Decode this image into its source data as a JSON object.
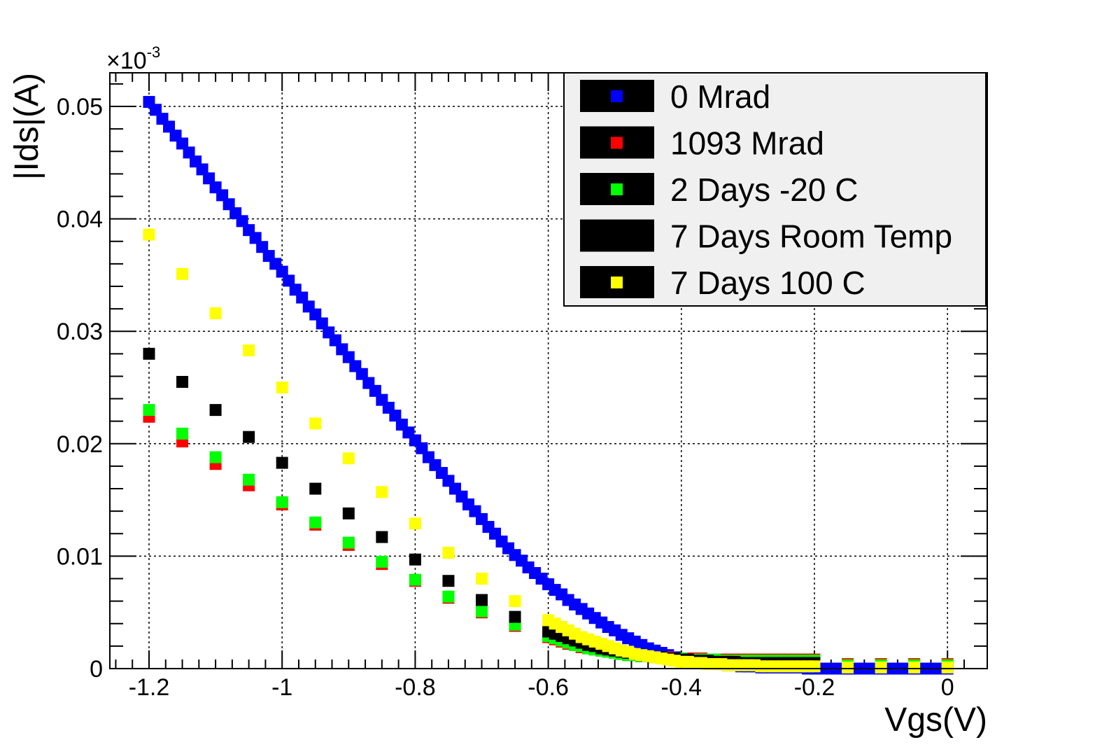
{
  "chart_data": {
    "type": "scatter",
    "title": "",
    "xlabel": "Vgs(V)",
    "ylabel": "|Ids|(A)",
    "y_multiplier_label": "×10",
    "y_multiplier_exponent": "-3",
    "xlim": [
      -1.25,
      0.03
    ],
    "ylim": [
      0,
      0.053
    ],
    "x_ticks": [
      -1.2,
      -1.0,
      -0.8,
      -0.6,
      -0.4,
      -0.2,
      0
    ],
    "x_tick_labels": [
      "-1.2",
      "-1",
      "-0.8",
      "-0.6",
      "-0.4",
      "-0.2",
      "0"
    ],
    "y_ticks": [
      0,
      0.01,
      0.02,
      0.03,
      0.04,
      0.05
    ],
    "y_tick_labels": [
      "0",
      "0.01",
      "0.02",
      "0.03",
      "0.04",
      "0.05"
    ],
    "grid": true,
    "legend_position": "top-right",
    "series": [
      {
        "name": "0 Mrad",
        "color": "#0000ff",
        "x": [
          -1.2,
          -1.19,
          -1.18,
          -1.17,
          -1.16,
          -1.15,
          -1.14,
          -1.13,
          -1.12,
          -1.11,
          -1.1,
          -1.09,
          -1.08,
          -1.07,
          -1.06,
          -1.05,
          -1.04,
          -1.03,
          -1.02,
          -1.01,
          -1.0,
          -0.99,
          -0.98,
          -0.97,
          -0.96,
          -0.95,
          -0.94,
          -0.93,
          -0.92,
          -0.91,
          -0.9,
          -0.89,
          -0.88,
          -0.87,
          -0.86,
          -0.85,
          -0.84,
          -0.83,
          -0.82,
          -0.81,
          -0.8,
          -0.79,
          -0.78,
          -0.77,
          -0.76,
          -0.75,
          -0.74,
          -0.73,
          -0.72,
          -0.71,
          -0.7,
          -0.69,
          -0.68,
          -0.67,
          -0.66,
          -0.65,
          -0.64,
          -0.63,
          -0.62,
          -0.61,
          -0.6,
          -0.59,
          -0.58,
          -0.57,
          -0.56,
          -0.55,
          -0.54,
          -0.53,
          -0.52,
          -0.51,
          -0.5,
          -0.49,
          -0.48,
          -0.47,
          -0.46,
          -0.45,
          -0.44,
          -0.43,
          -0.42,
          -0.41,
          -0.4,
          -0.39,
          -0.38,
          -0.37,
          -0.36,
          -0.35,
          -0.34,
          -0.33,
          -0.32,
          -0.31,
          -0.3,
          -0.29,
          -0.28,
          -0.27,
          -0.26,
          -0.25,
          -0.24,
          -0.23,
          -0.22,
          -0.21,
          -0.2,
          -0.19,
          -0.18,
          -0.17,
          -0.16,
          -0.15,
          -0.14,
          -0.13,
          -0.12,
          -0.11,
          -0.1,
          -0.09,
          -0.08,
          -0.07,
          -0.06,
          -0.05,
          -0.04,
          -0.03,
          -0.02,
          -0.01,
          0.0
        ],
        "y": [
          0.0504,
          0.0497,
          0.0489,
          0.0482,
          0.0474,
          0.0467,
          0.0459,
          0.0451,
          0.0444,
          0.0436,
          0.0428,
          0.0421,
          0.0413,
          0.0405,
          0.0398,
          0.039,
          0.0383,
          0.0375,
          0.0367,
          0.036,
          0.0353,
          0.0345,
          0.0337,
          0.033,
          0.0322,
          0.0315,
          0.0307,
          0.0299,
          0.0292,
          0.0284,
          0.0277,
          0.0269,
          0.0262,
          0.0254,
          0.0247,
          0.0239,
          0.0232,
          0.0225,
          0.0217,
          0.021,
          0.0203,
          0.0196,
          0.0188,
          0.0181,
          0.0174,
          0.0167,
          0.016,
          0.0153,
          0.0146,
          0.014,
          0.0133,
          0.0126,
          0.012,
          0.0113,
          0.0107,
          0.0101,
          0.0096,
          0.009,
          0.0085,
          0.008,
          0.0075,
          0.007,
          0.0066,
          0.0061,
          0.0057,
          0.0053,
          0.0049,
          0.0045,
          0.0041,
          0.0037,
          0.0034,
          0.003,
          0.0027,
          0.0024,
          0.0021,
          0.0018,
          0.0016,
          0.0014,
          0.0012,
          0.001,
          0.0009,
          0.0008,
          0.0007,
          0.0006,
          0.0005,
          0.0004,
          0.0004,
          0.0003,
          0.0003,
          0.0002,
          0.0002,
          0.0002,
          0.0001,
          0.0001,
          0.0001,
          0.0001,
          0.0001,
          0.0001,
          0.0001,
          0.0,
          0.0,
          0.0,
          0.0,
          0.0,
          0.0,
          0.0,
          0.0,
          0.0,
          0.0,
          0.0,
          0.0,
          0.0,
          0.0,
          0.0,
          0.0,
          0.0,
          0.0,
          0.0,
          0.0,
          0.0,
          0.0
        ]
      },
      {
        "name": "1093 Mrad",
        "color": "#ff0000",
        "x": [
          -1.2,
          -1.15,
          -1.1,
          -1.05,
          -1.0,
          -0.95,
          -0.9,
          -0.85,
          -0.8,
          -0.75,
          -0.7,
          -0.65,
          -0.6,
          -0.59,
          -0.58,
          -0.57,
          -0.56,
          -0.55,
          -0.54,
          -0.53,
          -0.52,
          -0.51,
          -0.5,
          -0.49,
          -0.48,
          -0.47,
          -0.46,
          -0.45,
          -0.44,
          -0.43,
          -0.42,
          -0.41,
          -0.4,
          -0.39,
          -0.38,
          -0.37,
          -0.36,
          -0.35,
          -0.34,
          -0.33,
          -0.32,
          -0.31,
          -0.3,
          -0.29,
          -0.28,
          -0.27,
          -0.26,
          -0.25,
          -0.24,
          -0.23,
          -0.22,
          -0.21,
          -0.2,
          -0.15,
          -0.1,
          -0.05,
          0.0
        ],
        "y": [
          0.0224,
          0.0202,
          0.0182,
          0.0163,
          0.0146,
          0.0128,
          0.011,
          0.0093,
          0.0078,
          0.0063,
          0.005,
          0.0038,
          0.0028,
          0.0026,
          0.0024,
          0.0022,
          0.0021,
          0.0019,
          0.0018,
          0.0017,
          0.0016,
          0.0015,
          0.0014,
          0.0013,
          0.0012,
          0.0012,
          0.0011,
          0.0011,
          0.001,
          0.001,
          0.001,
          0.0009,
          0.0009,
          0.0009,
          0.0009,
          0.0009,
          0.0008,
          0.0008,
          0.0008,
          0.0008,
          0.0008,
          0.0008,
          0.0008,
          0.0008,
          0.0008,
          0.0008,
          0.0008,
          0.0008,
          0.0008,
          0.0008,
          0.0008,
          0.0008,
          0.0008,
          0.0004,
          0.0004,
          0.0004,
          0.0004
        ]
      },
      {
        "name": "2 Days -20 C",
        "color": "#00ff00",
        "x": [
          -1.2,
          -1.15,
          -1.1,
          -1.05,
          -1.0,
          -0.95,
          -0.9,
          -0.85,
          -0.8,
          -0.75,
          -0.7,
          -0.65,
          -0.6,
          -0.59,
          -0.58,
          -0.57,
          -0.56,
          -0.55,
          -0.54,
          -0.53,
          -0.52,
          -0.51,
          -0.5,
          -0.49,
          -0.48,
          -0.47,
          -0.46,
          -0.45,
          -0.44,
          -0.43,
          -0.42,
          -0.41,
          -0.4,
          -0.39,
          -0.38,
          -0.37,
          -0.36,
          -0.35,
          -0.34,
          -0.33,
          -0.32,
          -0.31,
          -0.3,
          -0.29,
          -0.28,
          -0.27,
          -0.26,
          -0.25,
          -0.24,
          -0.23,
          -0.22,
          -0.21,
          -0.2,
          -0.15,
          -0.1,
          -0.05,
          0.0
        ],
        "y": [
          0.023,
          0.0209,
          0.0188,
          0.0168,
          0.0148,
          0.013,
          0.0112,
          0.0095,
          0.0079,
          0.0064,
          0.0051,
          0.0039,
          0.0029,
          0.0027,
          0.0025,
          0.0023,
          0.0021,
          0.002,
          0.0018,
          0.0017,
          0.0016,
          0.0015,
          0.0014,
          0.0013,
          0.0012,
          0.0012,
          0.0011,
          0.0011,
          0.001,
          0.001,
          0.0009,
          0.0009,
          0.0009,
          0.0008,
          0.0008,
          0.0008,
          0.0008,
          0.0008,
          0.0007,
          0.0007,
          0.0007,
          0.0007,
          0.0007,
          0.0007,
          0.0007,
          0.0007,
          0.0007,
          0.0007,
          0.0007,
          0.0007,
          0.0007,
          0.0007,
          0.0007,
          0.0003,
          0.0003,
          0.0003,
          0.0003
        ]
      },
      {
        "name": "7 Days Room Temp",
        "color": "#000000",
        "x": [
          -1.2,
          -1.15,
          -1.1,
          -1.05,
          -1.0,
          -0.95,
          -0.9,
          -0.85,
          -0.8,
          -0.75,
          -0.7,
          -0.65,
          -0.6,
          -0.59,
          -0.58,
          -0.57,
          -0.56,
          -0.55,
          -0.54,
          -0.53,
          -0.52,
          -0.51,
          -0.5,
          -0.49,
          -0.48,
          -0.47,
          -0.46,
          -0.45,
          -0.44,
          -0.43,
          -0.42,
          -0.41,
          -0.4,
          -0.39,
          -0.38,
          -0.37,
          -0.36,
          -0.35,
          -0.34,
          -0.33,
          -0.32,
          -0.31,
          -0.3,
          -0.29,
          -0.28,
          -0.27,
          -0.26,
          -0.25,
          -0.24,
          -0.23,
          -0.22,
          -0.21,
          -0.2
        ],
        "y": [
          0.028,
          0.0255,
          0.023,
          0.0206,
          0.0183,
          0.016,
          0.0138,
          0.0117,
          0.0097,
          0.0078,
          0.0061,
          0.0046,
          0.0033,
          0.0031,
          0.0029,
          0.0027,
          0.0025,
          0.0023,
          0.0021,
          0.002,
          0.0018,
          0.0017,
          0.0016,
          0.0015,
          0.0014,
          0.0013,
          0.0012,
          0.0011,
          0.001,
          0.001,
          0.0009,
          0.0009,
          0.0008,
          0.0008,
          0.0007,
          0.0007,
          0.0007,
          0.0006,
          0.0006,
          0.0006,
          0.0006,
          0.0005,
          0.0005,
          0.0005,
          0.0005,
          0.0005,
          0.0005,
          0.0005,
          0.0005,
          0.0005,
          0.0005,
          0.0005,
          0.0005
        ]
      },
      {
        "name": "7 Days 100 C",
        "color": "#ffff00",
        "x": [
          -1.2,
          -1.15,
          -1.1,
          -1.05,
          -1.0,
          -0.95,
          -0.9,
          -0.85,
          -0.8,
          -0.75,
          -0.7,
          -0.65,
          -0.6,
          -0.59,
          -0.58,
          -0.57,
          -0.56,
          -0.55,
          -0.54,
          -0.53,
          -0.52,
          -0.51,
          -0.5,
          -0.49,
          -0.48,
          -0.47,
          -0.46,
          -0.45,
          -0.44,
          -0.43,
          -0.42,
          -0.41,
          -0.4,
          -0.39,
          -0.38,
          -0.37,
          -0.36,
          -0.35,
          -0.34,
          -0.33,
          -0.32,
          -0.31,
          -0.3,
          -0.29,
          -0.28,
          -0.27,
          -0.26,
          -0.25,
          -0.24,
          -0.23,
          -0.22,
          -0.21,
          -0.2,
          -0.15,
          -0.1,
          -0.05,
          0.0
        ],
        "y": [
          0.0386,
          0.0351,
          0.0316,
          0.0283,
          0.025,
          0.0218,
          0.0187,
          0.0157,
          0.0129,
          0.0103,
          0.008,
          0.006,
          0.0043,
          0.004,
          0.0037,
          0.0034,
          0.0031,
          0.0028,
          0.0026,
          0.0024,
          0.0022,
          0.002,
          0.0018,
          0.0016,
          0.0015,
          0.0013,
          0.0012,
          0.0011,
          0.001,
          0.0009,
          0.0008,
          0.0007,
          0.0006,
          0.0006,
          0.0005,
          0.0005,
          0.0004,
          0.0004,
          0.0004,
          0.0003,
          0.0003,
          0.0003,
          0.0003,
          0.0003,
          0.0002,
          0.0002,
          0.0002,
          0.0002,
          0.0002,
          0.0002,
          0.0002,
          0.0002,
          0.0002,
          0.0001,
          0.0001,
          0.0001,
          0.0001
        ]
      }
    ]
  }
}
